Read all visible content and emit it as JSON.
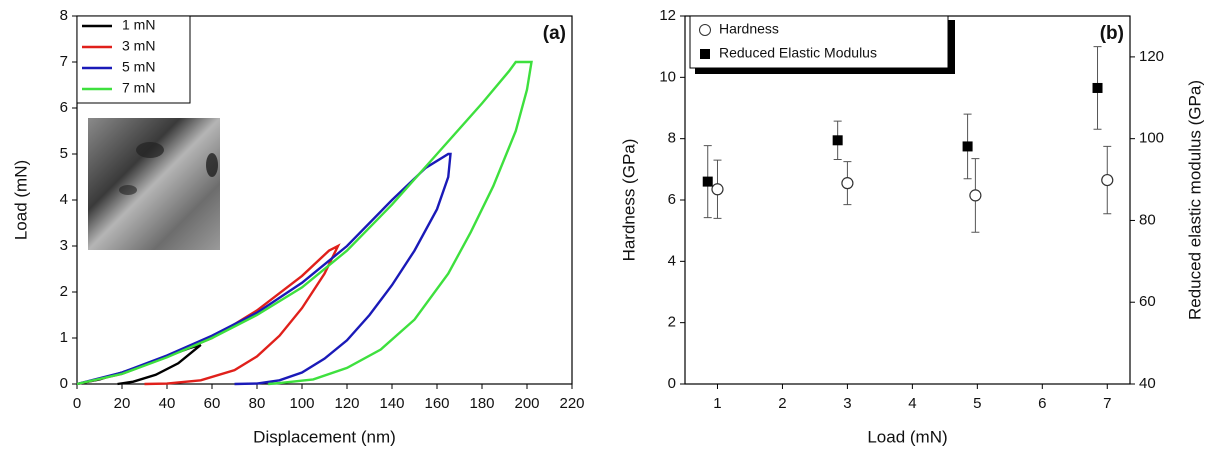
{
  "chart_data": [
    {
      "type": "line",
      "annotation": "(a)",
      "x_label": "Displacement (nm)",
      "y_label": "Load (mN)",
      "xlim": [
        0,
        220
      ],
      "xticks": [
        0,
        20,
        40,
        60,
        80,
        100,
        120,
        140,
        160,
        180,
        200,
        220
      ],
      "ylim": [
        0,
        8
      ],
      "yticks": [
        0,
        1,
        2,
        3,
        4,
        5,
        6,
        7,
        8
      ],
      "legend": "upper-left",
      "series": [
        {
          "name": "1 mN",
          "color": "#000000",
          "x": [
            0,
            10,
            20,
            30,
            40,
            50,
            55,
            45,
            35,
            25,
            18
          ],
          "values": [
            0,
            0.1,
            0.25,
            0.42,
            0.6,
            0.78,
            0.85,
            0.45,
            0.2,
            0.05,
            0
          ]
        },
        {
          "name": "3 mN",
          "color": "#e0201b",
          "x": [
            0,
            20,
            40,
            60,
            80,
            100,
            112,
            116,
            110,
            100,
            90,
            80,
            70,
            55,
            40,
            30
          ],
          "values": [
            0,
            0.22,
            0.6,
            1.0,
            1.6,
            2.35,
            2.9,
            3.0,
            2.4,
            1.65,
            1.05,
            0.6,
            0.3,
            0.08,
            0.01,
            0
          ]
        },
        {
          "name": "5 mN",
          "color": "#1a1ab8",
          "x": [
            0,
            20,
            40,
            60,
            80,
            100,
            120,
            140,
            155,
            165,
            166,
            165,
            160,
            150,
            140,
            130,
            120,
            110,
            100,
            90,
            80,
            70
          ],
          "values": [
            0,
            0.25,
            0.62,
            1.05,
            1.55,
            2.2,
            3.0,
            4.0,
            4.7,
            5.0,
            5.0,
            4.5,
            3.8,
            2.9,
            2.15,
            1.5,
            0.95,
            0.55,
            0.25,
            0.08,
            0.01,
            0
          ]
        },
        {
          "name": "7 mN",
          "color": "#3ee03e",
          "x": [
            0,
            20,
            40,
            60,
            80,
            100,
            120,
            140,
            160,
            180,
            192,
            195,
            202,
            200,
            195,
            185,
            175,
            165,
            150,
            135,
            120,
            105,
            90,
            85
          ],
          "values": [
            0,
            0.22,
            0.58,
            1.0,
            1.5,
            2.1,
            2.9,
            3.9,
            5.0,
            6.1,
            6.8,
            7.0,
            7.0,
            6.4,
            5.5,
            4.3,
            3.3,
            2.4,
            1.4,
            0.75,
            0.35,
            0.1,
            0.02,
            0
          ]
        }
      ]
    },
    {
      "type": "scatter",
      "annotation": "(b)",
      "x_label": "Load (mN)",
      "y_label": "Hardness (GPa)",
      "y2_label": "Reduced elastic modulus (GPa)",
      "xlim": [
        0.5,
        7.35
      ],
      "xticks": [
        1,
        2,
        3,
        4,
        5,
        6,
        7
      ],
      "ylim": [
        0,
        12
      ],
      "yticks": [
        0,
        2,
        4,
        6,
        8,
        10,
        12
      ],
      "y2lim": [
        40,
        130
      ],
      "y2ticks": [
        40,
        60,
        80,
        100,
        120
      ],
      "legend": "upper-left",
      "series": [
        {
          "name": "Hardness",
          "marker": "open-circle",
          "color": "#333333",
          "x": [
            1.0,
            3.0,
            4.97,
            7.0
          ],
          "values": [
            6.35,
            6.55,
            6.15,
            6.65
          ],
          "errors": [
            0.95,
            0.7,
            1.2,
            1.1
          ]
        },
        {
          "name": "Reduced Elastic Modulus",
          "marker": "filled-square",
          "color": "#000000",
          "axis": "y2",
          "x": [
            0.85,
            2.85,
            4.85,
            6.85
          ],
          "values": [
            89.5,
            99.6,
            98.1,
            112.4
          ],
          "errors": [
            8.8,
            4.7,
            7.9,
            10.1
          ]
        }
      ]
    }
  ]
}
